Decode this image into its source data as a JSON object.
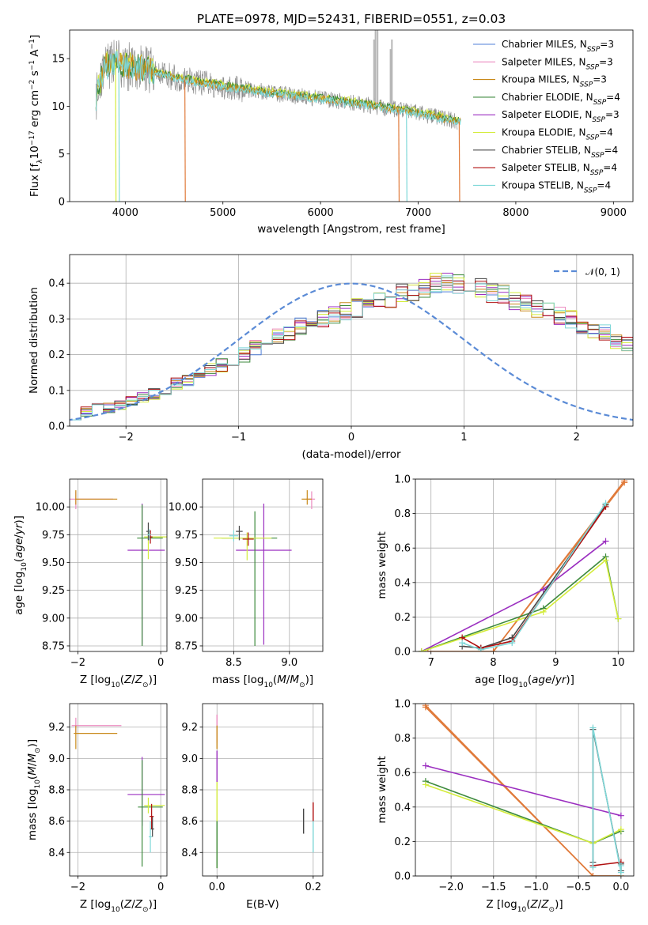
{
  "figure_title": "PLATE=0978, MJD=52431, FIBERID=0551, z=0.03",
  "colors": {
    "Chabrier MILES": "#4f7fd8",
    "Salpeter MILES": "#ec8bc0",
    "Kroupa MILES": "#c98a1b",
    "Chabrier ELODIE": "#3d8a3d",
    "Salpeter ELODIE": "#9b2fc0",
    "Kroupa ELODIE": "#d4ec3c",
    "Chabrier STELIB": "#474747",
    "Salpeter STELIB": "#b01010",
    "Kroupa STELIB": "#7fd8d8",
    "data": "#8c8c8c",
    "gauss": "#5b8bd6",
    "orange": "#e07a3a"
  },
  "chart_data": [
    {
      "id": "spectrum",
      "type": "line",
      "title": "PLATE=0978, MJD=52431, FIBERID=0551, z=0.03",
      "xlabel": "wavelength [Angstrom, rest frame]",
      "ylabel_parts": [
        "Flux [f",
        "λ",
        "10",
        "−17",
        " erg cm",
        "−2",
        " s",
        "−1",
        " A",
        "−1",
        "]"
      ],
      "xlim": [
        3430,
        9200
      ],
      "ylim": [
        0,
        18
      ],
      "xticks": [
        "4000",
        "5000",
        "6000",
        "7000",
        "8000",
        "9000"
      ],
      "yticks": [
        "0",
        "5",
        "10",
        "15"
      ],
      "legend_position": "upper right",
      "legend": [
        {
          "label": "Chabrier MILES, N",
          "sub": "SSP",
          "tail": "=3"
        },
        {
          "label": "Salpeter MILES, N",
          "sub": "SSP",
          "tail": "=3"
        },
        {
          "label": "Kroupa MILES, N",
          "sub": "SSP",
          "tail": "=3"
        },
        {
          "label": "Chabrier ELODIE, N",
          "sub": "SSP",
          "tail": "=4"
        },
        {
          "label": "Salpeter ELODIE, N",
          "sub": "SSP",
          "tail": "=3"
        },
        {
          "label": "Kroupa ELODIE, N",
          "sub": "SSP",
          "tail": "=4"
        },
        {
          "label": "Chabrier STELIB, N",
          "sub": "SSP",
          "tail": "=4"
        },
        {
          "label": "Salpeter STELIB, N",
          "sub": "SSP",
          "tail": "=4"
        },
        {
          "label": "Kroupa STELIB, N",
          "sub": "SSP",
          "tail": "=4"
        }
      ],
      "continuum": [
        [
          3700,
          11.0
        ],
        [
          3800,
          14.2
        ],
        [
          3900,
          14.6
        ],
        [
          4000,
          14.2
        ],
        [
          4200,
          13.9
        ],
        [
          4500,
          13.0
        ],
        [
          5000,
          12.1
        ],
        [
          5500,
          11.4
        ],
        [
          6000,
          10.8
        ],
        [
          6500,
          10.1
        ],
        [
          7000,
          9.3
        ],
        [
          7400,
          8.4
        ]
      ]
    },
    {
      "id": "residuals",
      "type": "histogram",
      "xlabel": "(data-model)/error",
      "ylabel": "Normed distribution",
      "xlim": [
        -2.5,
        2.5
      ],
      "ylim": [
        0,
        0.48
      ],
      "xticks": [
        "−2",
        "−1",
        "0",
        "1",
        "2"
      ],
      "yticks": [
        "0.0",
        "0.1",
        "0.2",
        "0.3",
        "0.4"
      ],
      "legend": "𝒩(0, 1)",
      "legend_position": "upper right",
      "bin_width": 0.1,
      "bin_start": -2.5,
      "base_values": [
        0.03,
        0.04,
        0.05,
        0.05,
        0.06,
        0.07,
        0.08,
        0.09,
        0.1,
        0.12,
        0.13,
        0.14,
        0.16,
        0.17,
        0.19,
        0.2,
        0.22,
        0.24,
        0.25,
        0.26,
        0.28,
        0.29,
        0.3,
        0.31,
        0.32,
        0.33,
        0.34,
        0.35,
        0.36,
        0.37,
        0.38,
        0.39,
        0.4,
        0.4,
        0.4,
        0.39,
        0.39,
        0.37,
        0.37,
        0.35,
        0.34,
        0.33,
        0.32,
        0.31,
        0.3,
        0.28,
        0.27,
        0.26,
        0.24,
        0.23,
        0.21,
        0.2,
        0.18,
        0.17,
        0.16,
        0.14,
        0.13,
        0.12,
        0.11,
        0.1,
        0.08,
        0.08,
        0.07,
        0.06,
        0.05,
        0.05,
        0.04,
        0.04,
        0.03,
        0.03,
        0.02,
        0.02
      ]
    },
    {
      "id": "age-vs-Z",
      "type": "scatter",
      "xlabel": "Z [log₁₀(Z/Z☉)]",
      "ylabel": "age  [log₁₀(age/yr)]",
      "xlim": [
        -2.2,
        0.15
      ],
      "ylim": [
        8.7,
        10.25
      ],
      "xticks": [
        "−2",
        "0"
      ],
      "yticks": [
        "8.75",
        "9.00",
        "9.25",
        "9.50",
        "9.75",
        "10.00"
      ],
      "points": [
        {
          "series": "Salpeter MILES",
          "x": -2.05,
          "y": 10.07,
          "xerr": [
            1.5,
            0.9
          ],
          "yerr": [
            0.09,
            0.07
          ]
        },
        {
          "series": "Kroupa MILES",
          "x": -2.05,
          "y": 10.07,
          "xerr": [
            0.02,
            1.0
          ],
          "yerr": [
            0.05,
            0.08
          ]
        },
        {
          "series": "Salpeter ELODIE",
          "x": -0.45,
          "y": 9.61,
          "xerr": [
            0.35,
            0.55
          ],
          "yerr": [
            0.85,
            0.42
          ]
        },
        {
          "series": "Chabrier ELODIE",
          "x": -0.45,
          "y": 9.72,
          "xerr": [
            0.12,
            0.5
          ],
          "yerr": [
            0.97,
            0.3
          ]
        },
        {
          "series": "Kroupa ELODIE",
          "x": -0.3,
          "y": 9.73,
          "xerr": [
            0.1,
            0.45
          ],
          "yerr": [
            0.2,
            0.05
          ]
        },
        {
          "series": "Chabrier STELIB",
          "x": -0.3,
          "y": 9.78,
          "xerr": [
            0.05,
            0.05
          ],
          "yerr": [
            0.08,
            0.08
          ]
        },
        {
          "series": "Salpeter STELIB",
          "x": -0.25,
          "y": 9.73,
          "xerr": [
            0.05,
            0.05
          ],
          "yerr": [
            0.06,
            0.06
          ]
        },
        {
          "series": "Kroupa STELIB",
          "x": -0.28,
          "y": 9.75,
          "xerr": [
            0.04,
            0.04
          ],
          "yerr": [
            0.05,
            0.05
          ]
        }
      ]
    },
    {
      "id": "age-vs-mass",
      "type": "scatter",
      "xlabel": "mass [log₁₀(M/M☉)]",
      "ylabel": "",
      "xlim": [
        8.22,
        9.3
      ],
      "ylim": [
        8.7,
        10.25
      ],
      "xticks": [
        "8.5",
        "9.0"
      ],
      "yticks": [
        "8.75",
        "9.00",
        "9.25",
        "9.50",
        "9.75",
        "10.00"
      ],
      "points": [
        {
          "series": "Salpeter MILES",
          "x": 9.2,
          "y": 10.07,
          "xerr": [
            0.05,
            0.03
          ],
          "yerr": [
            0.09,
            0.07
          ]
        },
        {
          "series": "Kroupa MILES",
          "x": 9.16,
          "y": 10.07,
          "xerr": [
            0.05,
            0.04
          ],
          "yerr": [
            0.05,
            0.08
          ]
        },
        {
          "series": "Salpeter ELODIE",
          "x": 8.77,
          "y": 9.61,
          "xerr": [
            0.25,
            0.25
          ],
          "yerr": [
            0.85,
            0.42
          ]
        },
        {
          "series": "Chabrier ELODIE",
          "x": 8.69,
          "y": 9.72,
          "xerr": [
            0.3,
            0.2
          ],
          "yerr": [
            0.97,
            0.24
          ]
        },
        {
          "series": "Kroupa ELODIE",
          "x": 8.62,
          "y": 9.72,
          "xerr": [
            0.3,
            0.22
          ],
          "yerr": [
            0.2,
            0.05
          ]
        },
        {
          "series": "Chabrier STELIB",
          "x": 8.55,
          "y": 9.78,
          "xerr": [
            0.03,
            0.03
          ],
          "yerr": [
            0.08,
            0.05
          ]
        },
        {
          "series": "Salpeter STELIB",
          "x": 8.63,
          "y": 9.71,
          "xerr": [
            0.05,
            0.05
          ],
          "yerr": [
            0.06,
            0.06
          ]
        },
        {
          "series": "Kroupa STELIB",
          "x": 8.5,
          "y": 9.74,
          "xerr": [
            0.04,
            0.04
          ],
          "yerr": [
            0.05,
            0.05
          ]
        }
      ]
    },
    {
      "id": "mass-weight-vs-age",
      "type": "line",
      "xlabel": "age  [log₁₀(age/yr)]",
      "ylabel": "mass weight",
      "xlim": [
        6.75,
        10.25
      ],
      "ylim": [
        0,
        1.0
      ],
      "xticks": [
        "7",
        "8",
        "9",
        "10"
      ],
      "yticks": [
        "0.0",
        "0.2",
        "0.4",
        "0.6",
        "0.8",
        "1.0"
      ],
      "series": [
        {
          "name": "Salpeter MILES",
          "x": [
            6.95,
            8.0,
            10.1
          ],
          "y": [
            0.0,
            0.0,
            0.99
          ]
        },
        {
          "name": "Kroupa MILES",
          "x": [
            6.95,
            8.0,
            10.1
          ],
          "y": [
            0.0,
            0.0,
            0.98
          ]
        },
        {
          "name": "Salpeter ELODIE",
          "x": [
            6.85,
            8.8,
            9.8
          ],
          "y": [
            0.0,
            0.36,
            0.64
          ]
        },
        {
          "name": "Chabrier ELODIE",
          "x": [
            6.85,
            8.8,
            9.8,
            10.0
          ],
          "y": [
            0.0,
            0.25,
            0.55,
            0.19
          ]
        },
        {
          "name": "Kroupa ELODIE",
          "x": [
            6.85,
            8.8,
            9.8,
            10.0
          ],
          "y": [
            0.0,
            0.23,
            0.53,
            0.19
          ]
        },
        {
          "name": "Chabrier STELIB",
          "x": [
            7.5,
            7.8,
            8.3,
            9.8
          ],
          "y": [
            0.03,
            0.02,
            0.08,
            0.85
          ]
        },
        {
          "name": "Salpeter STELIB",
          "x": [
            7.5,
            7.8,
            8.3,
            9.8
          ],
          "y": [
            0.08,
            0.02,
            0.06,
            0.84
          ]
        },
        {
          "name": "Kroupa STELIB",
          "x": [
            7.5,
            7.8,
            8.3,
            9.8
          ],
          "y": [
            0.05,
            0.01,
            0.05,
            0.86
          ]
        }
      ]
    },
    {
      "id": "mass-vs-Z",
      "type": "scatter",
      "xlabel": "Z [log₁₀(Z/Z☉)]",
      "ylabel": "mass [log₁₀(M/M☉)]",
      "xlim": [
        -2.2,
        0.15
      ],
      "ylim": [
        8.25,
        9.35
      ],
      "xticks": [
        "−2",
        "0"
      ],
      "yticks": [
        "8.4",
        "8.6",
        "8.8",
        "9.0",
        "9.2"
      ],
      "points": [
        {
          "series": "Salpeter MILES",
          "x": -2.05,
          "y": 9.21,
          "xerr": [
            0.1,
            1.1
          ],
          "yerr": [
            0.05,
            0.05
          ]
        },
        {
          "series": "Kroupa MILES",
          "x": -2.05,
          "y": 9.16,
          "xerr": [
            0.05,
            1.0
          ],
          "yerr": [
            0.1,
            0.05
          ]
        },
        {
          "series": "Salpeter ELODIE",
          "x": -0.45,
          "y": 8.77,
          "xerr": [
            0.35,
            0.55
          ],
          "yerr": [
            0.2,
            0.24
          ]
        },
        {
          "series": "Chabrier ELODIE",
          "x": -0.45,
          "y": 8.69,
          "xerr": [
            0.1,
            0.5
          ],
          "yerr": [
            0.38,
            0.3
          ]
        },
        {
          "series": "Kroupa ELODIE",
          "x": -0.3,
          "y": 8.7,
          "xerr": [
            0.1,
            0.4
          ],
          "yerr": [
            0.05,
            0.05
          ]
        },
        {
          "series": "Chabrier STELIB",
          "x": -0.2,
          "y": 8.55,
          "xerr": [
            0.04,
            0.04
          ],
          "yerr": [
            0.05,
            0.08
          ]
        },
        {
          "series": "Salpeter STELIB",
          "x": -0.22,
          "y": 8.63,
          "xerr": [
            0.05,
            0.05
          ],
          "yerr": [
            0.08,
            0.08
          ]
        },
        {
          "series": "Kroupa STELIB",
          "x": -0.25,
          "y": 8.5,
          "xerr": [
            0.04,
            0.04
          ],
          "yerr": [
            0.1,
            0.1
          ]
        }
      ]
    },
    {
      "id": "mass-vs-ebv",
      "type": "scatter",
      "xlabel": "E(B-V)",
      "ylabel": "",
      "xlim": [
        -0.03,
        0.22
      ],
      "ylim": [
        8.25,
        9.35
      ],
      "xticks": [
        "0.0",
        "0.2"
      ],
      "yticks": [
        "8.4",
        "8.6",
        "8.8",
        "9.0",
        "9.2"
      ],
      "points": [
        {
          "series": "Salpeter MILES",
          "x": 0.0,
          "y": 9.2,
          "xerr": [
            0,
            0
          ],
          "yerr": [
            0.1,
            0.08
          ]
        },
        {
          "series": "Kroupa MILES",
          "x": 0.0,
          "y": 9.16,
          "xerr": [
            0,
            0
          ],
          "yerr": [
            0.1,
            0.05
          ]
        },
        {
          "series": "Salpeter ELODIE",
          "x": 0.0,
          "y": 8.95,
          "xerr": [
            0,
            0
          ],
          "yerr": [
            0.1,
            0.1
          ]
        },
        {
          "series": "Kroupa ELODIE",
          "x": 0.0,
          "y": 8.6,
          "xerr": [
            0,
            0
          ],
          "yerr": [
            0.3,
            0.25
          ]
        },
        {
          "series": "Chabrier ELODIE",
          "x": 0.0,
          "y": 8.5,
          "xerr": [
            0,
            0
          ],
          "yerr": [
            0.2,
            0.1
          ]
        },
        {
          "series": "Chabrier STELIB",
          "x": 0.18,
          "y": 8.6,
          "xerr": [
            0,
            0
          ],
          "yerr": [
            0.08,
            0.08
          ]
        },
        {
          "series": "Salpeter STELIB",
          "x": 0.2,
          "y": 8.66,
          "xerr": [
            0,
            0
          ],
          "yerr": [
            0.06,
            0.06
          ]
        },
        {
          "series": "Kroupa STELIB",
          "x": 0.2,
          "y": 8.5,
          "xerr": [
            0,
            0
          ],
          "yerr": [
            0.1,
            0.1
          ]
        }
      ]
    },
    {
      "id": "mass-weight-vs-Z",
      "type": "line",
      "xlabel": "Z [log₁₀(Z/Z☉)]",
      "ylabel": "mass weight",
      "xlim": [
        -2.42,
        0.15
      ],
      "ylim": [
        0,
        1.0
      ],
      "xticks": [
        "−2.0",
        "−1.5",
        "−1.0",
        "−0.5",
        "0.0"
      ],
      "yticks": [
        "0.0",
        "0.2",
        "0.4",
        "0.6",
        "0.8",
        "1.0"
      ],
      "series": [
        {
          "name": "Salpeter MILES",
          "x": [
            -2.3,
            -0.33,
            0.0
          ],
          "y": [
            0.99,
            0.0,
            0.0
          ]
        },
        {
          "name": "Kroupa MILES",
          "x": [
            -2.3,
            -0.33,
            0.0
          ],
          "y": [
            0.98,
            0.0,
            0.0
          ]
        },
        {
          "name": "Salpeter ELODIE",
          "x": [
            -2.3,
            0.0
          ],
          "y": [
            0.64,
            0.35
          ]
        },
        {
          "name": "Chabrier ELODIE",
          "x": [
            -2.3,
            -0.33,
            0.0
          ],
          "y": [
            0.55,
            0.19,
            0.26
          ]
        },
        {
          "name": "Kroupa ELODIE",
          "x": [
            -2.3,
            -0.33,
            0.0
          ],
          "y": [
            0.53,
            0.19,
            0.27
          ]
        },
        {
          "name": "Chabrier STELIB",
          "x": [
            -0.33,
            -0.33,
            0.0,
            0.0
          ],
          "y": [
            0.08,
            0.85,
            0.03,
            0.07
          ]
        },
        {
          "name": "Salpeter STELIB",
          "x": [
            -0.33,
            0.0
          ],
          "y": [
            0.06,
            0.08
          ]
        },
        {
          "name": "Kroupa STELIB",
          "x": [
            -0.33,
            -0.33,
            0.0,
            0.0
          ],
          "y": [
            0.05,
            0.86,
            0.02,
            0.06
          ]
        }
      ]
    }
  ]
}
